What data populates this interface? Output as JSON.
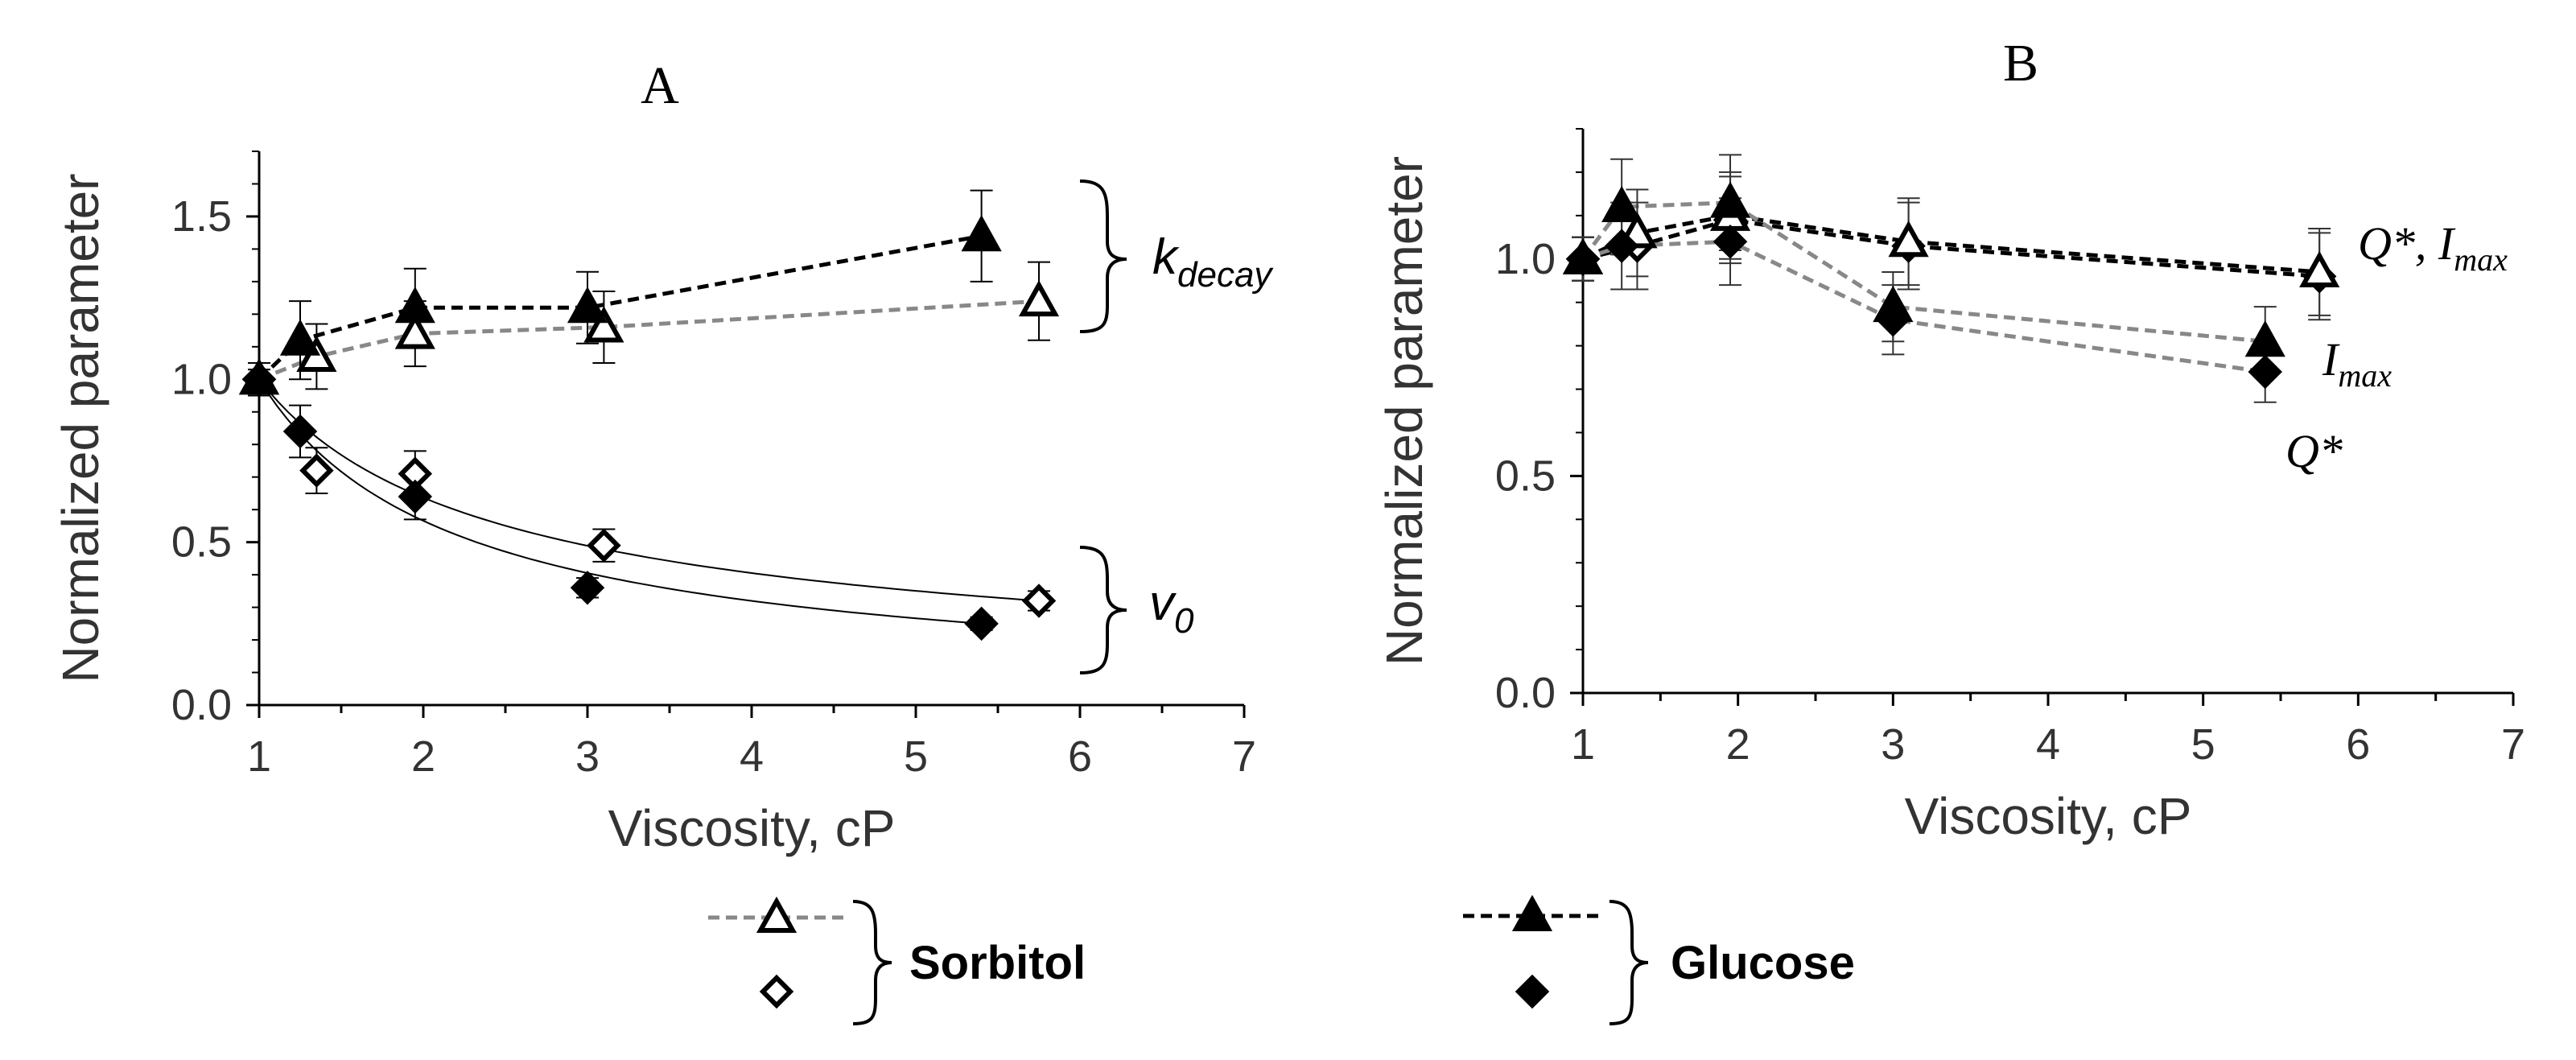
{
  "chart_data": [
    {
      "type": "scatter",
      "panel_label": "A",
      "xlabel": "Viscosity, cP",
      "ylabel": "Normalized parameter",
      "xlim": [
        1,
        7
      ],
      "ylim": [
        0,
        1.7
      ],
      "xticks": [
        "1",
        "2",
        "3",
        "4",
        "5",
        "6",
        "7"
      ],
      "yticks": [
        "0.0",
        "0.5",
        "1.0",
        "1.5"
      ],
      "grid": false,
      "series": [
        {
          "name": "Sorbitol k_decay",
          "marker": "open-triangle",
          "line": "grey-dashed",
          "x": [
            1.0,
            1.35,
            1.95,
            3.1,
            5.75
          ],
          "y": [
            1.0,
            1.07,
            1.14,
            1.16,
            1.24
          ],
          "err": [
            0.05,
            0.1,
            0.1,
            0.11,
            0.12
          ]
        },
        {
          "name": "Glucose k_decay",
          "marker": "filled-triangle",
          "line": "black-dashed",
          "x": [
            1.0,
            1.25,
            1.95,
            3.0,
            5.4
          ],
          "y": [
            1.0,
            1.12,
            1.22,
            1.22,
            1.44
          ],
          "err": [
            0.05,
            0.12,
            0.12,
            0.11,
            0.14
          ]
        },
        {
          "name": "Sorbitol v0",
          "marker": "open-diamond",
          "line": "fit",
          "x": [
            1.0,
            1.35,
            1.95,
            3.1,
            5.75
          ],
          "y": [
            1.0,
            0.72,
            0.71,
            0.49,
            0.32
          ],
          "err": [
            0.03,
            0.07,
            0.07,
            0.05,
            0.03
          ]
        },
        {
          "name": "Glucose v0",
          "marker": "filled-diamond",
          "line": "fit",
          "x": [
            1.0,
            1.25,
            1.95,
            3.0,
            5.4
          ],
          "y": [
            1.0,
            0.84,
            0.64,
            0.36,
            0.25
          ],
          "err": [
            0.03,
            0.08,
            0.07,
            0.03,
            0.02
          ]
        }
      ],
      "annotations": [
        {
          "text": "k",
          "subscript": "decay",
          "target": "k_decay curves"
        },
        {
          "text": "v",
          "subscript": "0",
          "target": "v0 curves"
        }
      ]
    },
    {
      "type": "scatter",
      "panel_label": "B",
      "xlabel": "Viscosity, cP",
      "ylabel": "Normalized parameter",
      "xlim": [
        1,
        7
      ],
      "ylim": [
        0,
        1.3
      ],
      "xticks": [
        "1",
        "2",
        "3",
        "4",
        "5",
        "6",
        "7"
      ],
      "yticks": [
        "0.0",
        "0.5",
        "1.0"
      ],
      "grid": false,
      "series": [
        {
          "name": "Sorbitol Q*",
          "marker": "open-diamond",
          "line": "black-dashed",
          "x": [
            1.0,
            1.35,
            1.95,
            3.1,
            5.75
          ],
          "y": [
            1.0,
            1.03,
            1.09,
            1.03,
            0.96
          ],
          "err": [
            0.05,
            0.1,
            0.1,
            0.1,
            0.1
          ]
        },
        {
          "name": "Sorbitol I_max",
          "marker": "open-triangle",
          "line": "black-dashed",
          "x": [
            1.0,
            1.35,
            1.95,
            3.1,
            5.75
          ],
          "y": [
            1.0,
            1.06,
            1.1,
            1.04,
            0.97
          ],
          "err": [
            0.05,
            0.1,
            0.1,
            0.1,
            0.1
          ]
        },
        {
          "name": "Glucose Q*",
          "marker": "filled-diamond",
          "line": "grey-dashed",
          "x": [
            1.0,
            1.25,
            1.95,
            3.0,
            5.4
          ],
          "y": [
            1.0,
            1.03,
            1.04,
            0.86,
            0.74
          ],
          "err": [
            0.05,
            0.1,
            0.1,
            0.08,
            0.07
          ]
        },
        {
          "name": "Glucose I_max",
          "marker": "filled-triangle",
          "line": "grey-dashed",
          "x": [
            1.0,
            1.25,
            1.95,
            3.0,
            5.4
          ],
          "y": [
            1.0,
            1.12,
            1.13,
            0.89,
            0.81
          ],
          "err": [
            0.05,
            0.11,
            0.11,
            0.08,
            0.08
          ]
        }
      ],
      "annotations": [
        {
          "text": "Q*, I",
          "subscript": "max",
          "target": "upper curves"
        },
        {
          "text": "I",
          "subscript": "max",
          "target": "lower triangle curve"
        },
        {
          "text": "Q*",
          "subscript": "",
          "target": "lower diamond curve"
        }
      ]
    }
  ],
  "legend": {
    "sorbitol_label": "Sorbitol",
    "glucose_label": "Glucose"
  },
  "colors": {
    "black": "#000000",
    "grey": "#888888",
    "axis": "#000000"
  }
}
